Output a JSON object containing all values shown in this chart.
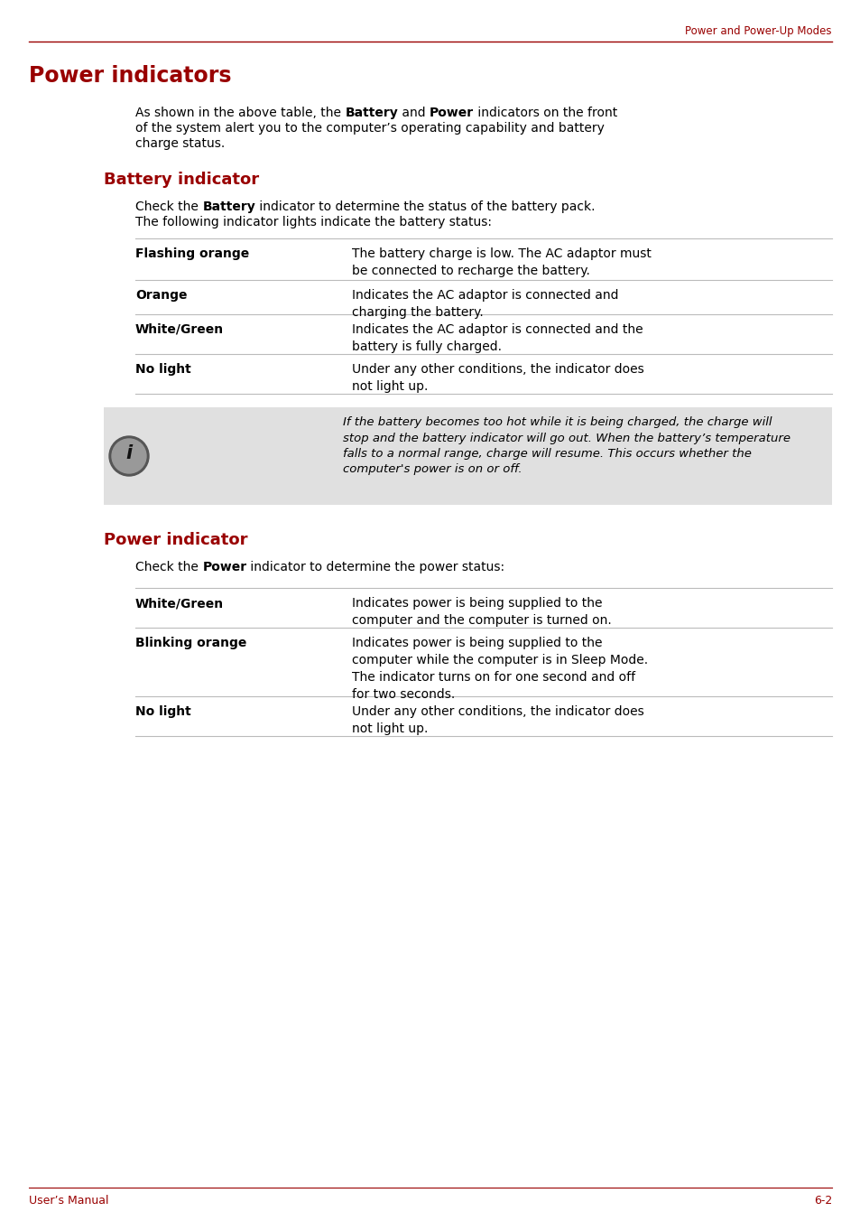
{
  "page_bg": "#ffffff",
  "header_text": "Power and Power-Up Modes",
  "header_color": "#990000",
  "header_line_color": "#990000",
  "main_title": "Power indicators",
  "main_title_color": "#990000",
  "main_title_fontsize": 18,
  "section1_title": "Battery indicator",
  "section1_title_color": "#990000",
  "battery_table": [
    [
      "Flashing orange",
      "The battery charge is low. The AC adaptor must\nbe connected to recharge the battery."
    ],
    [
      "Orange",
      "Indicates the AC adaptor is connected and\ncharging the battery."
    ],
    [
      "White/Green",
      "Indicates the AC adaptor is connected and the\nbattery is fully charged."
    ],
    [
      "No light",
      "Under any other conditions, the indicator does\nnot light up."
    ]
  ],
  "note_text": "If the battery becomes too hot while it is being charged, the charge will\nstop and the battery indicator will go out. When the battery’s temperature\nfalls to a normal range, charge will resume. This occurs whether the\ncomputer's power is on or off.",
  "note_bg": "#e0e0e0",
  "section2_title": "Power indicator",
  "section2_title_color": "#990000",
  "power_table": [
    [
      "White/Green",
      "Indicates power is being supplied to the\ncomputer and the computer is turned on."
    ],
    [
      "Blinking orange",
      "Indicates power is being supplied to the\ncomputer while the computer is in Sleep Mode.\nThe indicator turns on for one second and off\nfor two seconds."
    ],
    [
      "No light",
      "Under any other conditions, the indicator does\nnot light up."
    ]
  ],
  "footer_left": "User’s Manual",
  "footer_right": "6-2",
  "footer_color": "#990000",
  "table_line_color": "#bbbbbb",
  "text_color": "#000000"
}
